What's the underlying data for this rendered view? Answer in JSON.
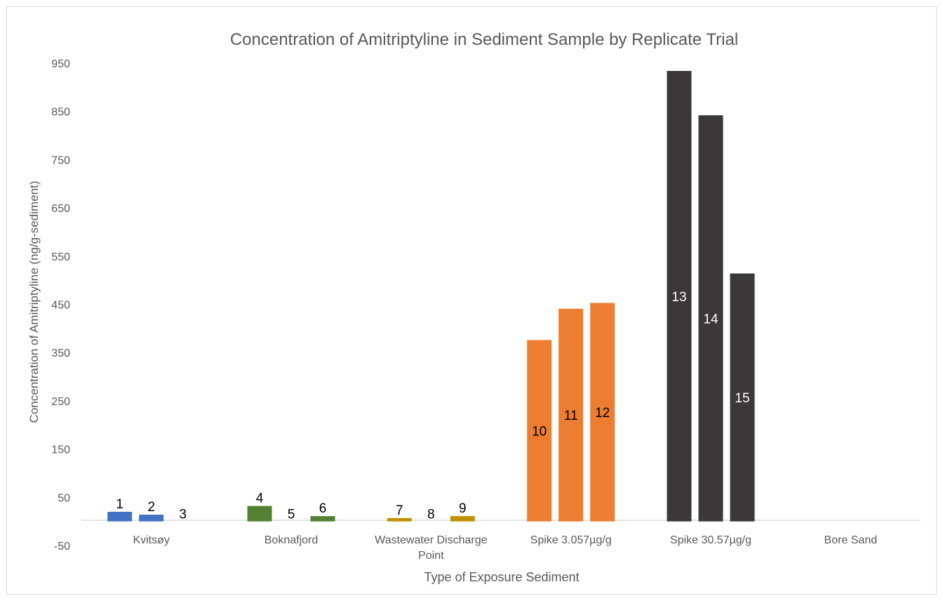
{
  "chart_data": {
    "type": "bar",
    "title": "Concentration of Amitriptyline in Sediment Sample by Replicate Trial",
    "xlabel": "Type of Exposure Sediment",
    "ylabel": "Concentration of Amitriptyline (ng/g-sediment)",
    "ylim": [
      -50,
      950
    ],
    "yticks": [
      "950",
      "850",
      "750",
      "650",
      "550",
      "450",
      "350",
      "250",
      "150",
      "50",
      "-50"
    ],
    "grid": false,
    "legend": "none",
    "categories": [
      {
        "lines": [
          "Kvitsøy"
        ]
      },
      {
        "lines": [
          "Boknafjord"
        ]
      },
      {
        "lines": [
          "Wastewater Discharge",
          "Point"
        ]
      },
      {
        "lines": [
          "Spike 3.057µg/g"
        ]
      },
      {
        "lines": [
          "Spike 30.57µg/g"
        ]
      },
      {
        "lines": [
          "Bore Sand"
        ]
      }
    ],
    "groups": [
      {
        "color": "#4472c4",
        "label_color": "#000000",
        "label_pos": "above",
        "bars": [
          {
            "label": "1",
            "value": 20
          },
          {
            "label": "2",
            "value": 14
          },
          {
            "label": "3",
            "value": 0
          }
        ]
      },
      {
        "color": "#548235",
        "label_color": "#000000",
        "label_pos": "above",
        "bars": [
          {
            "label": "4",
            "value": 32
          },
          {
            "label": "5",
            "value": 0
          },
          {
            "label": "6",
            "value": 11
          }
        ]
      },
      {
        "color": "#bf9000",
        "label_color": "#000000",
        "label_pos": "above",
        "bars": [
          {
            "label": "7",
            "value": 7
          },
          {
            "label": "8",
            "value": 0
          },
          {
            "label": "9",
            "value": 11
          }
        ]
      },
      {
        "color": "#ed7d31",
        "label_color": "#000000",
        "label_pos": "inside",
        "bars": [
          {
            "label": "10",
            "value": 376
          },
          {
            "label": "11",
            "value": 441
          },
          {
            "label": "12",
            "value": 453
          }
        ]
      },
      {
        "color": "#3a3838",
        "label_color": "#ffffff",
        "label_pos": "inside",
        "bars": [
          {
            "label": "13",
            "value": 934
          },
          {
            "label": "14",
            "value": 842
          },
          {
            "label": "15",
            "value": 514
          }
        ]
      },
      {
        "color": "#a5a5a5",
        "label_color": "#000000",
        "label_pos": "above",
        "bars": []
      }
    ]
  }
}
